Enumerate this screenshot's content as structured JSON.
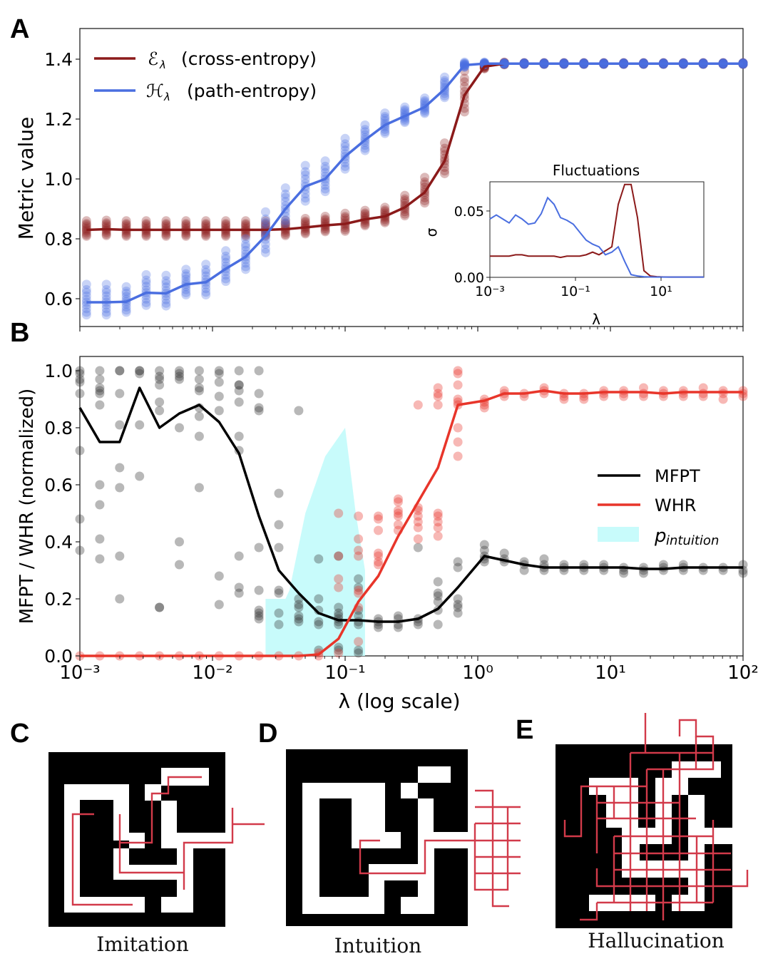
{
  "panels": {
    "A": {
      "letter": "A"
    },
    "B": {
      "letter": "B"
    },
    "C": {
      "letter": "C",
      "caption": "Imitation"
    },
    "D": {
      "letter": "D",
      "caption": "Intuition"
    },
    "E": {
      "letter": "E",
      "caption": "Hallucination"
    }
  },
  "colors": {
    "cross_entropy": "#8b1a1a",
    "path_entropy": "#4a6ee0",
    "mfpt": "#000000",
    "whr": "#e8352a",
    "intuition_fill": "#c8fbfb",
    "maze_path": "#d23a4a"
  },
  "chart_data": [
    {
      "id": "A",
      "type": "scatter",
      "title": "",
      "xlabel": "",
      "ylabel": "Metric value",
      "xscale": "log",
      "xlim": [
        0.001,
        100
      ],
      "ylim": [
        0.52,
        1.5
      ],
      "yticks": [
        0.6,
        0.8,
        1.0,
        1.2,
        1.4
      ],
      "ytick_labels": [
        "0.6",
        "0.8",
        "1.0",
        "1.2",
        "1.4"
      ],
      "legend": "top-left",
      "log10_x": [
        -2.95,
        -2.8,
        -2.65,
        -2.5,
        -2.35,
        -2.2,
        -2.05,
        -1.9,
        -1.75,
        -1.6,
        -1.45,
        -1.3,
        -1.15,
        -1.0,
        -0.85,
        -0.7,
        -0.55,
        -0.4,
        -0.25,
        -0.1,
        0.05,
        0.2,
        0.35,
        0.5,
        0.65,
        0.8,
        0.95,
        1.1,
        1.25,
        1.4,
        1.55,
        1.7,
        1.85,
        2.0
      ],
      "series": [
        {
          "name": "𝓔λ (cross-entropy)",
          "key": "cross_entropy",
          "mean": [
            0.83,
            0.832,
            0.83,
            0.83,
            0.83,
            0.83,
            0.83,
            0.83,
            0.83,
            0.83,
            0.832,
            0.838,
            0.845,
            0.85,
            0.865,
            0.875,
            0.905,
            0.955,
            1.06,
            1.28,
            1.375,
            1.385,
            1.385,
            1.385,
            1.385,
            1.385,
            1.385,
            1.385,
            1.385,
            1.385,
            1.385,
            1.385,
            1.385,
            1.385
          ],
          "spread": [
            0.03,
            0.03,
            0.03,
            0.03,
            0.03,
            0.03,
            0.03,
            0.03,
            0.03,
            0.03,
            0.03,
            0.03,
            0.03,
            0.035,
            0.03,
            0.03,
            0.04,
            0.05,
            0.06,
            0.08,
            0.01,
            0.005,
            0.003,
            0.003,
            0.003,
            0.003,
            0.003,
            0.003,
            0.003,
            0.003,
            0.003,
            0.003,
            0.003,
            0.003
          ]
        },
        {
          "name": "𝓗λ (path-entropy)",
          "key": "path_entropy",
          "mean": [
            0.588,
            0.588,
            0.59,
            0.62,
            0.618,
            0.648,
            0.655,
            0.7,
            0.74,
            0.81,
            0.9,
            0.975,
            1.0,
            1.075,
            1.13,
            1.18,
            1.21,
            1.24,
            1.3,
            1.38,
            1.385,
            1.385,
            1.385,
            1.385,
            1.385,
            1.385,
            1.385,
            1.385,
            1.385,
            1.385,
            1.385,
            1.385,
            1.385,
            1.385
          ],
          "spread": [
            0.06,
            0.06,
            0.05,
            0.06,
            0.06,
            0.05,
            0.06,
            0.06,
            0.06,
            0.08,
            0.07,
            0.07,
            0.06,
            0.06,
            0.05,
            0.04,
            0.03,
            0.03,
            0.04,
            0.01,
            0.005,
            0.003,
            0.003,
            0.003,
            0.003,
            0.003,
            0.003,
            0.003,
            0.003,
            0.003,
            0.003,
            0.003,
            0.003,
            0.003
          ]
        }
      ]
    },
    {
      "id": "A-inset",
      "type": "line",
      "title": "Fluctuations",
      "xlabel": "λ",
      "ylabel": "σ",
      "xscale": "log",
      "xlim": [
        0.001,
        100
      ],
      "ylim": [
        0,
        0.072
      ],
      "yticks": [
        0.0,
        0.05
      ],
      "ytick_labels": [
        "0.00",
        "0.05"
      ],
      "xticks_log10": [
        -3,
        -1,
        1
      ],
      "xtick_labels": [
        "10⁻³",
        "10⁻¹",
        "10¹"
      ],
      "log10_x": [
        -3.0,
        -2.85,
        -2.7,
        -2.55,
        -2.4,
        -2.25,
        -2.1,
        -1.95,
        -1.8,
        -1.65,
        -1.5,
        -1.35,
        -1.2,
        -1.05,
        -0.9,
        -0.75,
        -0.6,
        -0.45,
        -0.3,
        -0.15,
        0.0,
        0.15,
        0.3,
        0.45,
        0.6,
        0.75,
        0.9,
        1.05,
        1.2,
        1.35,
        1.5,
        1.65,
        1.8,
        1.95,
        2.0
      ],
      "series": [
        {
          "name": "cross-entropy σ",
          "key": "cross_entropy",
          "values": [
            0.016,
            0.016,
            0.016,
            0.016,
            0.017,
            0.017,
            0.016,
            0.016,
            0.016,
            0.016,
            0.016,
            0.015,
            0.016,
            0.016,
            0.016,
            0.017,
            0.019,
            0.017,
            0.02,
            0.023,
            0.055,
            0.07,
            0.07,
            0.045,
            0.005,
            0.001,
            0.0005,
            0.0003,
            0.0002,
            0.0002,
            0.0002,
            0.0002,
            0.0002,
            0.0002,
            0.0002
          ]
        },
        {
          "name": "path-entropy σ",
          "key": "path_entropy",
          "values": [
            0.044,
            0.047,
            0.044,
            0.041,
            0.047,
            0.044,
            0.04,
            0.041,
            0.048,
            0.06,
            0.055,
            0.045,
            0.043,
            0.04,
            0.034,
            0.028,
            0.025,
            0.023,
            0.017,
            0.019,
            0.023,
            0.012,
            0.002,
            0.001,
            0.0005,
            0.0003,
            0.0002,
            0.0002,
            0.0002,
            0.0002,
            0.0002,
            0.0002,
            0.0002,
            0.0002,
            0.0002
          ]
        }
      ]
    },
    {
      "id": "B",
      "type": "scatter",
      "title": "",
      "xlabel": "λ (log scale)",
      "ylabel": "MFPT / WHR (normalized)",
      "xscale": "log",
      "xlim": [
        0.001,
        100
      ],
      "ylim": [
        0,
        1.05
      ],
      "yticks": [
        0.0,
        0.2,
        0.4,
        0.6,
        0.8,
        1.0
      ],
      "ytick_labels": [
        "0.0",
        "0.2",
        "0.4",
        "0.6",
        "0.8",
        "1.0"
      ],
      "xticks_log10": [
        -3,
        -2,
        -1,
        0,
        1,
        2
      ],
      "xtick_labels": [
        "10⁻³",
        "10⁻²",
        "10⁻¹",
        "10⁰",
        "10¹",
        "10²"
      ],
      "legend": "center-right",
      "log10_x": [
        -3.0,
        -2.85,
        -2.7,
        -2.55,
        -2.4,
        -2.25,
        -2.1,
        -1.95,
        -1.8,
        -1.65,
        -1.5,
        -1.35,
        -1.2,
        -1.05,
        -0.9,
        -0.75,
        -0.6,
        -0.45,
        -0.3,
        -0.15,
        0.05,
        0.2,
        0.35,
        0.5,
        0.65,
        0.8,
        0.95,
        1.1,
        1.25,
        1.4,
        1.55,
        1.7,
        1.85,
        2.0
      ],
      "series": [
        {
          "name": "MFPT",
          "key": "mfpt",
          "mean": [
            0.87,
            0.75,
            0.75,
            0.94,
            0.8,
            0.85,
            0.88,
            0.82,
            0.71,
            0.49,
            0.3,
            0.22,
            0.15,
            0.125,
            0.125,
            0.12,
            0.12,
            0.13,
            0.165,
            0.24,
            0.35,
            0.335,
            0.32,
            0.31,
            0.31,
            0.31,
            0.31,
            0.31,
            0.305,
            0.305,
            0.31,
            0.31,
            0.31,
            0.31
          ],
          "points": [
            [
              1.0,
              0.99,
              0.97,
              0.96,
              0.92,
              0.72,
              0.48,
              0.37
            ],
            [
              1.0,
              0.97,
              0.94,
              0.93,
              0.92,
              0.88,
              0.6,
              0.53,
              0.41,
              0.34
            ],
            [
              1.0,
              1.0,
              0.92,
              0.81,
              0.66,
              0.59,
              0.35,
              0.2
            ],
            [
              1.0,
              1.0,
              0.99,
              0.81,
              0.63
            ],
            [
              1.0,
              0.98,
              0.97,
              0.95,
              0.89,
              0.86,
              0.17,
              0.17
            ],
            [
              1.0,
              0.99,
              0.98,
              0.97,
              0.8,
              0.4,
              0.32
            ],
            [
              1.0,
              0.97,
              0.94,
              0.93,
              0.87,
              0.84,
              0.77,
              0.59
            ],
            [
              1.0,
              0.99,
              0.96,
              0.91,
              0.86,
              0.28,
              0.18
            ],
            [
              1.0,
              0.95,
              0.95,
              0.93,
              0.89,
              0.77,
              0.72,
              0.35,
              0.24,
              0.22
            ],
            [
              1.0,
              0.92,
              0.87,
              0.86,
              0.38,
              0.23,
              0.16,
              0.15,
              0.14,
              0.13
            ],
            [
              0.57,
              0.46,
              0.38,
              0.23,
              0.22,
              0.15,
              0.11
            ],
            [
              0.86,
              0.2,
              0.18,
              0.17,
              0.14,
              0.13,
              0.12
            ],
            [
              0.34,
              0.2,
              0.16,
              0.12,
              0.11,
              0.02
            ],
            [
              0.35,
              0.17,
              0.15,
              0.14,
              0.13,
              0.12,
              0.11,
              0.03,
              0.02
            ],
            [
              0.27,
              0.24,
              0.16,
              0.14,
              0.12,
              0.11,
              0.02,
              0.01
            ],
            [
              0.13,
              0.12,
              0.11,
              0.1
            ],
            [
              0.14,
              0.13,
              0.11,
              0.1
            ],
            [
              0.38,
              0.13,
              0.12,
              0.11
            ],
            [
              0.26,
              0.22,
              0.21,
              0.19,
              0.16,
              0.11
            ],
            [
              0.33,
              0.31,
              0.2,
              0.18,
              0.17,
              0.15
            ],
            [
              0.39,
              0.37,
              0.35,
              0.34,
              0.33
            ],
            [
              0.36,
              0.34,
              0.33
            ],
            [
              0.33,
              0.32,
              0.3
            ],
            [
              0.34,
              0.32,
              0.31,
              0.3
            ],
            [
              0.32,
              0.31,
              0.3
            ],
            [
              0.32,
              0.31,
              0.3
            ],
            [
              0.32,
              0.31,
              0.3
            ],
            [
              0.31,
              0.3,
              0.29
            ],
            [
              0.31,
              0.3,
              0.29
            ],
            [
              0.32,
              0.31,
              0.3
            ],
            [
              0.32,
              0.31,
              0.3
            ],
            [
              0.31,
              0.3
            ],
            [
              0.31,
              0.3
            ],
            [
              0.32,
              0.3,
              0.29
            ]
          ]
        },
        {
          "name": "WHR",
          "key": "whr",
          "mean": [
            0,
            0,
            0,
            0,
            0,
            0,
            0,
            0,
            0,
            0,
            0,
            0,
            0.005,
            0.06,
            0.19,
            0.28,
            0.42,
            0.54,
            0.66,
            0.88,
            0.895,
            0.92,
            0.92,
            0.93,
            0.92,
            0.92,
            0.925,
            0.925,
            0.925,
            0.92,
            0.925,
            0.925,
            0.925,
            0.925
          ],
          "points": [
            [
              0
            ],
            [
              0
            ],
            [
              0
            ],
            [
              0
            ],
            [
              0
            ],
            [
              0
            ],
            [
              0
            ],
            [
              0
            ],
            [
              0
            ],
            [
              0
            ],
            [
              0
            ],
            [
              0
            ],
            [
              0.01,
              0
            ],
            [
              0.5,
              0.35,
              0.27,
              0.24,
              0.01
            ],
            [
              0.49,
              0.41,
              0.37,
              0.35,
              0.23,
              0.22,
              0.17,
              0.05
            ],
            [
              0.49,
              0.48,
              0.44,
              0.36,
              0.35,
              0.33,
              0.32
            ],
            [
              0.55,
              0.54,
              0.51,
              0.5,
              0.49,
              0.46,
              0.44
            ],
            [
              0.88,
              0.52,
              0.51,
              0.49,
              0.47,
              0.45,
              0.41
            ],
            [
              0.94,
              0.92,
              0.91,
              0.88,
              0.5,
              0.49,
              0.47,
              0.45,
              0.42
            ],
            [
              1.0,
              0.99,
              0.95,
              0.9,
              0.89,
              0.88,
              0.8,
              0.75,
              0.7
            ],
            [
              0.9,
              0.89,
              0.88,
              0.87
            ],
            [
              0.93,
              0.92,
              0.91
            ],
            [
              0.92,
              0.91
            ],
            [
              0.94,
              0.93,
              0.92
            ],
            [
              0.92,
              0.91,
              0.9
            ],
            [
              0.92,
              0.91,
              0.9
            ],
            [
              0.93,
              0.92,
              0.91
            ],
            [
              0.93,
              0.92,
              0.91
            ],
            [
              0.94,
              0.92,
              0.91
            ],
            [
              0.93,
              0.92,
              0.91
            ],
            [
              0.93,
              0.92,
              0.91
            ],
            [
              0.94,
              0.92,
              0.91
            ],
            [
              0.93,
              0.92,
              0.9
            ],
            [
              0.93,
              0.92,
              0.91
            ]
          ]
        },
        {
          "name": "p_intuition",
          "key": "intuition_fill",
          "type": "area",
          "log10_x": [
            -1.6,
            -1.45,
            -1.42,
            -1.3,
            -1.15,
            -1.0,
            -0.92,
            -0.85,
            -0.85
          ],
          "values": [
            0.2,
            0.2,
            0.23,
            0.5,
            0.7,
            0.8,
            0.5,
            0.3,
            0.0
          ]
        }
      ]
    }
  ],
  "legends": {
    "A": [
      {
        "script": "ℰ",
        "sub": "λ",
        "text": "(cross-entropy)",
        "key": "cross_entropy"
      },
      {
        "script": "ℋ",
        "sub": "λ",
        "text": "(path-entropy)",
        "key": "path_entropy"
      }
    ],
    "B": [
      {
        "text": "MFPT",
        "key": "mfpt"
      },
      {
        "text": "WHR",
        "key": "whr"
      },
      {
        "text": "p",
        "sub": "intuition",
        "key": "intuition_fill"
      }
    ]
  }
}
